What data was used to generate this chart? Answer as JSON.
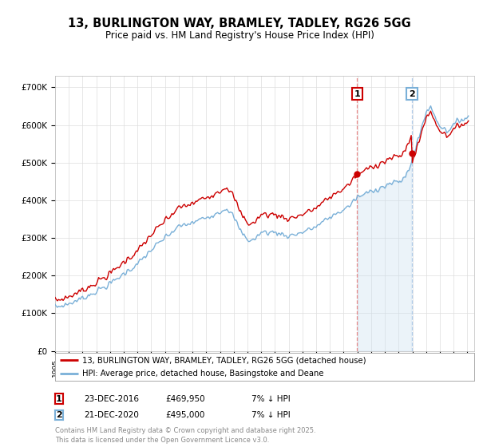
{
  "title_line1": "13, BURLINGTON WAY, BRAMLEY, TADLEY, RG26 5GG",
  "title_line2": "Price paid vs. HM Land Registry's House Price Index (HPI)",
  "background_color": "#ffffff",
  "grid_color": "#dddddd",
  "hpi_color": "#7ab0d8",
  "hpi_fill_color": "#c8dff0",
  "price_color": "#cc0000",
  "sale1_vline_color": "#e88080",
  "sale2_vline_color": "#aac8e8",
  "legend_label_price": "13, BURLINGTON WAY, BRAMLEY, TADLEY, RG26 5GG (detached house)",
  "legend_label_hpi": "HPI: Average price, detached house, Basingstoke and Deane",
  "sale1_date": "23-DEC-2016",
  "sale1_price": 469950,
  "sale1_note": "7% ↓ HPI",
  "sale2_date": "21-DEC-2020",
  "sale2_price": 495000,
  "sale2_note": "7% ↓ HPI",
  "copyright_text": "Contains HM Land Registry data © Crown copyright and database right 2025.\nThis data is licensed under the Open Government Licence v3.0.",
  "ylim_min": 0,
  "ylim_max": 730000,
  "ytick_values": [
    0,
    100000,
    200000,
    300000,
    400000,
    500000,
    600000,
    700000
  ],
  "ytick_labels": [
    "£0",
    "£100K",
    "£200K",
    "£300K",
    "£400K",
    "£500K",
    "£600K",
    "£700K"
  ],
  "sale1_x": 2016.97,
  "sale2_x": 2020.97
}
